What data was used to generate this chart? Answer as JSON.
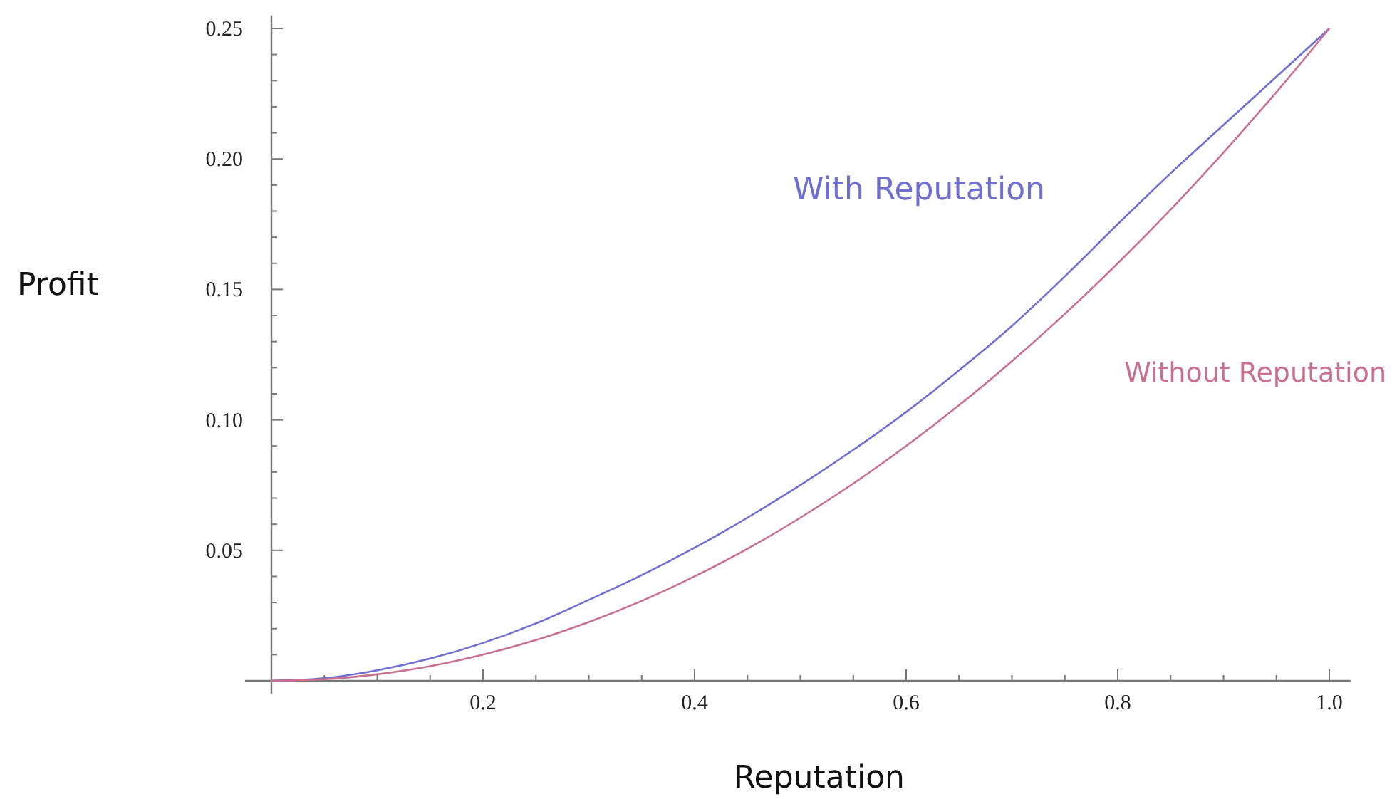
{
  "chart_data": {
    "type": "line",
    "xlabel": "Reputation",
    "ylabel": "Profit",
    "xlim": [
      -0.025,
      1.02
    ],
    "ylim": [
      -0.005,
      0.255
    ],
    "xticks": [
      {
        "value": 0.05,
        "label": null
      },
      {
        "value": 0.1,
        "label": null
      },
      {
        "value": 0.15,
        "label": null
      },
      0.2,
      {
        "value": 0.25,
        "label": null
      },
      {
        "value": 0.3,
        "label": null
      },
      {
        "value": 0.35,
        "label": null
      },
      0.4,
      {
        "value": 0.45,
        "label": null
      },
      {
        "value": 0.5,
        "label": null
      },
      {
        "value": 0.55,
        "label": null
      },
      0.6,
      {
        "value": 0.65,
        "label": null
      },
      {
        "value": 0.7,
        "label": null
      },
      {
        "value": 0.75,
        "label": null
      },
      0.8,
      {
        "value": 0.85,
        "label": null
      },
      {
        "value": 0.9,
        "label": null
      },
      {
        "value": 0.95,
        "label": null
      },
      {
        "value": 1,
        "label": "1.0"
      }
    ],
    "yticks": [
      {
        "value": 0.01,
        "label": null
      },
      {
        "value": 0.02,
        "label": null
      },
      {
        "value": 0.03,
        "label": null
      },
      {
        "value": 0.04,
        "label": null
      },
      0.05,
      {
        "value": 0.06,
        "label": null
      },
      {
        "value": 0.07,
        "label": null
      },
      {
        "value": 0.08,
        "label": null
      },
      {
        "value": 0.09,
        "label": null
      },
      {
        "value": 0.1,
        "label": "0.10"
      },
      {
        "value": 0.11,
        "label": null
      },
      {
        "value": 0.12,
        "label": null
      },
      {
        "value": 0.13,
        "label": null
      },
      {
        "value": 0.14,
        "label": null
      },
      0.15,
      {
        "value": 0.16,
        "label": null
      },
      {
        "value": 0.17,
        "label": null
      },
      {
        "value": 0.18,
        "label": null
      },
      {
        "value": 0.19,
        "label": null
      },
      {
        "value": 0.2,
        "label": "0.20"
      },
      {
        "value": 0.21,
        "label": null
      },
      {
        "value": 0.22,
        "label": null
      },
      {
        "value": 0.23,
        "label": null
      },
      {
        "value": 0.24,
        "label": null
      },
      0.25
    ],
    "x": [
      0,
      0.05,
      0.1,
      0.15,
      0.2,
      0.25,
      0.3,
      0.35,
      0.4,
      0.45,
      0.5,
      0.55,
      0.6,
      0.65,
      0.7,
      0.75,
      0.8,
      0.85,
      0.9,
      0.95,
      1
    ],
    "grid": false,
    "series": [
      {
        "name": "With Reputation",
        "color": "#6f6fd2",
        "values": [
          0,
          0.001,
          0.004,
          0.0085,
          0.0145,
          0.022,
          0.031,
          0.0405,
          0.051,
          0.0625,
          0.075,
          0.0885,
          0.103,
          0.119,
          0.136,
          0.155,
          0.175,
          0.1945,
          0.213,
          0.2315,
          0.25
        ]
      },
      {
        "name": "Without Reputation",
        "color": "#c8708e",
        "values": [
          0,
          0.0006,
          0.0025,
          0.0056,
          0.01,
          0.0156,
          0.0225,
          0.0306,
          0.04,
          0.0506,
          0.0625,
          0.0756,
          0.09,
          0.1056,
          0.1225,
          0.1406,
          0.16,
          0.1806,
          0.2025,
          0.2256,
          0.25
        ]
      }
    ]
  }
}
